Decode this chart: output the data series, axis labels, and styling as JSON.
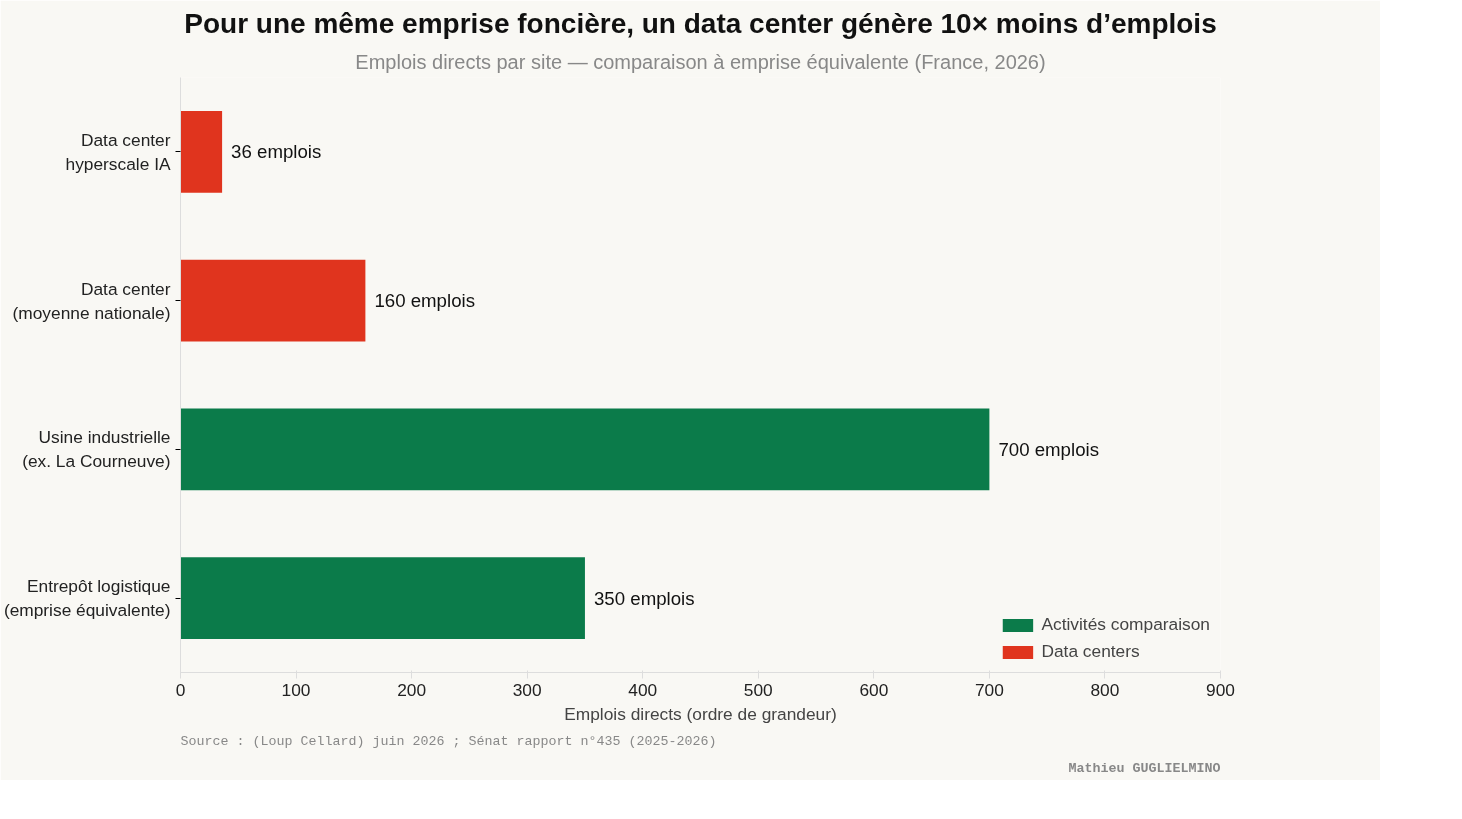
{
  "chart_data": {
    "type": "bar",
    "orientation": "horizontal",
    "title": "Pour une même emprise foncière, un data center génère 10× moins d’emplois",
    "subtitle": "Emplois directs par site — comparaison à emprise équivalente (France, 2026)",
    "xlabel": "Emplois directs (ordre de grandeur)",
    "categories": [
      "Data center hyperscale IA",
      "Data center (moyenne nationale)",
      "Usine industrielle (ex. La Courneuve)",
      "Entrepôt logistique (emprise équivalente)"
    ],
    "series": [
      {
        "name": "Activités comparaison",
        "color": "#0b7b4a",
        "values": [
          null,
          null,
          700,
          350
        ],
        "value_labels": [
          null,
          null,
          "700 emplois",
          "350 emplois"
        ]
      },
      {
        "name": "Data centers",
        "color": "#e0341e",
        "values": [
          36,
          160,
          null,
          null
        ],
        "value_labels": [
          "36 emplois",
          "160 emplois",
          null,
          null
        ]
      }
    ],
    "xlim": [
      0,
      900
    ],
    "xticks": [
      0,
      100,
      200,
      300,
      400,
      500,
      600,
      700,
      800,
      900
    ],
    "grid": false,
    "legend": "bottom right",
    "annotations": [
      "Source : (Loup Cellard) juin 2026 ; Sénat rapport n°435 (2025-2026)",
      "Mathieu GUGLIELMINO"
    ]
  }
}
